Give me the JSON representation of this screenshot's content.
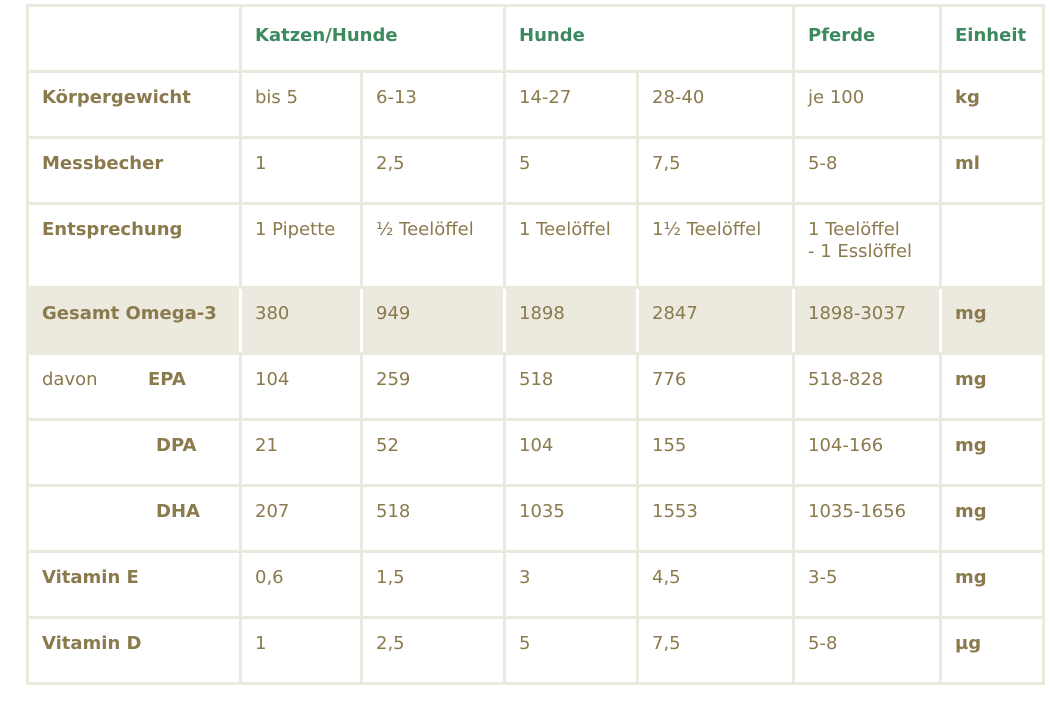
{
  "header": {
    "col_cat_dog": "Katzen/Hunde",
    "col_dogs": "Hunde",
    "col_horses": "Pferde",
    "col_unit": "Einheit"
  },
  "rows": {
    "body_weight": {
      "label": "Körpergewicht",
      "values": [
        "bis 5",
        "6-13",
        "14-27",
        "28-40",
        "je 100"
      ],
      "unit": "kg"
    },
    "measuring_cup": {
      "label": "Messbecher",
      "values": [
        "1",
        "2,5",
        "5",
        "7,5",
        "5-8"
      ],
      "unit": "ml"
    },
    "equivalent": {
      "label": "Entsprechung",
      "values": [
        "1 Pipette",
        "½ Teelöffel",
        "1 Teelöffel",
        "1½ Teelöffel"
      ],
      "horse_line1": "1 Teelöffel",
      "horse_line2": "- 1 Esslöffel",
      "unit": ""
    },
    "omega3": {
      "label": "Gesamt Omega-3",
      "values": [
        "380",
        "949",
        "1898",
        "2847",
        "1898-3037"
      ],
      "unit": "mg"
    },
    "epa": {
      "prefix": "davon",
      "label": "EPA",
      "values": [
        "104",
        "259",
        "518",
        "776",
        "518-828"
      ],
      "unit": "mg"
    },
    "dpa": {
      "label": "DPA",
      "values": [
        "21",
        "52",
        "104",
        "155",
        "104-166"
      ],
      "unit": "mg"
    },
    "dha": {
      "label": "DHA",
      "values": [
        "207",
        "518",
        "1035",
        "1553",
        "1035-1656"
      ],
      "unit": "mg"
    },
    "vitamin_e": {
      "label": "Vitamin E",
      "values": [
        "0,6",
        "1,5",
        "3",
        "4,5",
        "3-5"
      ],
      "unit": "mg"
    },
    "vitamin_d": {
      "label": "Vitamin D",
      "values": [
        "1",
        "2,5",
        "5",
        "7,5",
        "5-8"
      ],
      "unit": "µg"
    }
  },
  "colors": {
    "header_text": "#3d8a5f",
    "body_text": "#8a7a4d",
    "grid": "#ece9df",
    "highlight_row": "#ece9df"
  }
}
